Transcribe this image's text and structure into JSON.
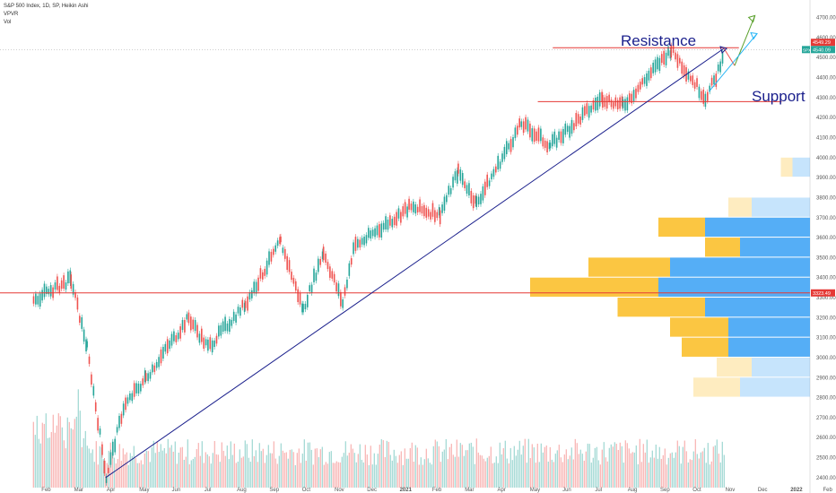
{
  "header": {
    "title": "S&P 500 Index, 1D, SP, Heikin Ashi",
    "indicators": [
      "VPVR",
      "Vol"
    ]
  },
  "chart_data": {
    "type": "candlestick",
    "title": "S&P 500 Index, 1D, SP, Heikin Ashi",
    "ylim": [
      2350,
      4770
    ],
    "y_ticks": [
      "4700.00",
      "4600.00",
      "4500.00",
      "4400.00",
      "4300.00",
      "4200.00",
      "4100.00",
      "4000.00",
      "3900.00",
      "3800.00",
      "3700.00",
      "3600.00",
      "3500.00",
      "3400.00",
      "3300.00",
      "3200.00",
      "3100.00",
      "3000.00",
      "2900.00",
      "2800.00",
      "2700.00",
      "2600.00",
      "2500.00",
      "2400.00"
    ],
    "x_ticks": [
      "Feb",
      "Mar",
      "Apr",
      "May",
      "Jun",
      "Jul",
      "Aug",
      "Sep",
      "Oct",
      "Nov",
      "Dec",
      "2021",
      "Feb",
      "Mar",
      "Apr",
      "May",
      "Jun",
      "Jul",
      "Aug",
      "Sep",
      "Oct",
      "Nov",
      "Dec",
      "2022",
      "Feb"
    ],
    "price_path": [
      {
        "date": "2020-01-15",
        "value": 3290
      },
      {
        "date": "2020-02-19",
        "value": 3390
      },
      {
        "date": "2020-03-05",
        "value": 3050
      },
      {
        "date": "2020-03-23",
        "value": 2400
      },
      {
        "date": "2020-04-08",
        "value": 2750
      },
      {
        "date": "2020-04-29",
        "value": 2900
      },
      {
        "date": "2020-06-08",
        "value": 3200
      },
      {
        "date": "2020-06-26",
        "value": 3050
      },
      {
        "date": "2020-07-31",
        "value": 3270
      },
      {
        "date": "2020-09-02",
        "value": 3580
      },
      {
        "date": "2020-09-23",
        "value": 3240
      },
      {
        "date": "2020-10-12",
        "value": 3530
      },
      {
        "date": "2020-10-30",
        "value": 3270
      },
      {
        "date": "2020-11-09",
        "value": 3550
      },
      {
        "date": "2020-12-31",
        "value": 3750
      },
      {
        "date": "2021-01-29",
        "value": 3720
      },
      {
        "date": "2021-02-15",
        "value": 3930
      },
      {
        "date": "2021-03-04",
        "value": 3770
      },
      {
        "date": "2021-04-15",
        "value": 4170
      },
      {
        "date": "2021-05-12",
        "value": 4060
      },
      {
        "date": "2021-06-30",
        "value": 4300
      },
      {
        "date": "2021-07-19",
        "value": 4260
      },
      {
        "date": "2021-09-02",
        "value": 4540
      },
      {
        "date": "2021-10-04",
        "value": 4300
      },
      {
        "date": "2021-10-14",
        "value": 4400
      },
      {
        "date": "2021-10-22",
        "value": 4546
      }
    ],
    "last_price": "4540.09",
    "last_price_label": "SPX",
    "resistance_level": "4549.29",
    "support_level": 4280,
    "marked_level": "3323.49",
    "annotations": {
      "resistance": "Resistance",
      "support": "Support"
    },
    "trendline": [
      {
        "date": "2020-03-23",
        "value": 2400
      },
      {
        "date": "2021-10-22",
        "value": 4546
      }
    ],
    "projection_up": [
      {
        "date": "2021-10-22",
        "value": 4546
      },
      {
        "date": "2021-11-01",
        "value": 4460
      },
      {
        "date": "2021-11-20",
        "value": 4710
      }
    ],
    "projection_channel": [
      {
        "date": "2021-10-08",
        "value": 4330
      },
      {
        "date": "2021-11-22",
        "value": 4620
      }
    ],
    "volume_profile": [
      {
        "price": 2400,
        "up": 0,
        "down": 0,
        "faint": true
      },
      {
        "price": 2500,
        "up": 0,
        "down": 0,
        "faint": true
      },
      {
        "price": 2600,
        "up": 0,
        "down": 0,
        "faint": true
      },
      {
        "price": 2700,
        "up": 0,
        "down": 0,
        "faint": true
      },
      {
        "price": 2800,
        "up": 40,
        "down": 60,
        "faint": true
      },
      {
        "price": 2900,
        "up": 30,
        "down": 50,
        "faint": true
      },
      {
        "price": 3000,
        "up": 40,
        "down": 70,
        "faint": false
      },
      {
        "price": 3100,
        "up": 50,
        "down": 70,
        "faint": false
      },
      {
        "price": 3200,
        "up": 75,
        "down": 90,
        "faint": false
      },
      {
        "price": 3300,
        "up": 110,
        "down": 130,
        "faint": false
      },
      {
        "price": 3400,
        "up": 70,
        "down": 120,
        "faint": false
      },
      {
        "price": 3500,
        "up": 30,
        "down": 60,
        "faint": false
      },
      {
        "price": 3600,
        "up": 40,
        "down": 90,
        "faint": false
      },
      {
        "price": 3700,
        "up": 20,
        "down": 50,
        "faint": true
      },
      {
        "price": 3800,
        "up": 0,
        "down": 0,
        "faint": true
      },
      {
        "price": 3900,
        "up": 10,
        "down": 15,
        "faint": true
      }
    ],
    "colors": {
      "up": "#26a69a",
      "down": "#ef5350",
      "trendline": "#1a1f8c",
      "level": "#e53935",
      "resistance": "#e53935",
      "support": "#e53935",
      "projection_up": "#5aa02c",
      "projection_down": "#ef5350",
      "projection_channel": "#29b6f6",
      "vp_up": "#fbc02d",
      "vp_down": "#42a5f5",
      "price_tag": "#26a69a",
      "axis_text": "#555555"
    }
  }
}
